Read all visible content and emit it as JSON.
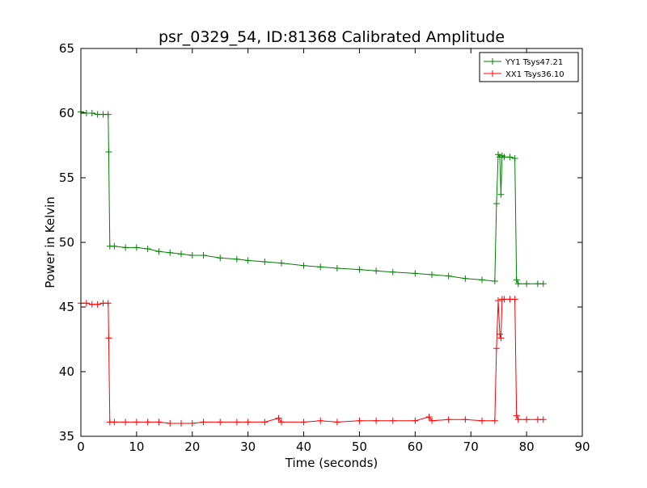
{
  "chart_data": {
    "type": "line",
    "title": "psr_0329_54, ID:81368 Calibrated Amplitude",
    "xlabel": "Time (seconds)",
    "ylabel": "Power in Kelvin",
    "xlim": [
      0,
      90
    ],
    "ylim": [
      35,
      65
    ],
    "xticks": [
      0,
      10,
      20,
      30,
      40,
      50,
      60,
      70,
      80,
      90
    ],
    "yticks": [
      35,
      40,
      45,
      50,
      55,
      60,
      65
    ],
    "grid": false,
    "legend_position": "top-right",
    "series": [
      {
        "name": "YY1 Tsys47.21",
        "color": "#008000",
        "marker": "+",
        "points": [
          [
            0,
            60.1
          ],
          [
            1,
            60.0
          ],
          [
            2,
            60.0
          ],
          [
            3,
            59.9
          ],
          [
            4,
            59.9
          ],
          [
            4.9,
            59.9
          ],
          [
            5.0,
            57.0
          ],
          [
            5.2,
            49.7
          ],
          [
            6,
            49.7
          ],
          [
            8,
            49.6
          ],
          [
            10,
            49.6
          ],
          [
            12,
            49.5
          ],
          [
            14,
            49.3
          ],
          [
            16,
            49.2
          ],
          [
            18,
            49.1
          ],
          [
            20,
            49.0
          ],
          [
            22,
            49.0
          ],
          [
            25,
            48.8
          ],
          [
            28,
            48.7
          ],
          [
            30,
            48.6
          ],
          [
            33,
            48.5
          ],
          [
            36,
            48.4
          ],
          [
            40,
            48.2
          ],
          [
            43,
            48.1
          ],
          [
            46,
            48.0
          ],
          [
            50,
            47.9
          ],
          [
            53,
            47.8
          ],
          [
            56,
            47.7
          ],
          [
            60,
            47.6
          ],
          [
            63,
            47.5
          ],
          [
            66,
            47.4
          ],
          [
            69,
            47.2
          ],
          [
            72,
            47.1
          ],
          [
            74.3,
            47.0
          ],
          [
            74.6,
            53.0
          ],
          [
            74.9,
            56.8
          ],
          [
            75.2,
            56.6
          ],
          [
            75.4,
            53.7
          ],
          [
            75.6,
            56.7
          ],
          [
            76,
            56.6
          ],
          [
            77,
            56.6
          ],
          [
            77.9,
            56.5
          ],
          [
            78.2,
            47.1
          ],
          [
            78.5,
            46.8
          ],
          [
            80,
            46.8
          ],
          [
            82,
            46.8
          ],
          [
            83,
            46.8
          ]
        ]
      },
      {
        "name": "XX1 Tsys36.10",
        "color": "#ff0000",
        "marker": "+",
        "points": [
          [
            0,
            45.3
          ],
          [
            1,
            45.3
          ],
          [
            2,
            45.2
          ],
          [
            3,
            45.2
          ],
          [
            4,
            45.3
          ],
          [
            4.9,
            45.3
          ],
          [
            5.0,
            42.6
          ],
          [
            5.2,
            36.1
          ],
          [
            6,
            36.1
          ],
          [
            8,
            36.1
          ],
          [
            10,
            36.1
          ],
          [
            12,
            36.1
          ],
          [
            14,
            36.1
          ],
          [
            16,
            36.0
          ],
          [
            18,
            36.0
          ],
          [
            20,
            36.0
          ],
          [
            22,
            36.1
          ],
          [
            25,
            36.1
          ],
          [
            28,
            36.1
          ],
          [
            30,
            36.1
          ],
          [
            33,
            36.1
          ],
          [
            35.5,
            36.4
          ],
          [
            36,
            36.1
          ],
          [
            40,
            36.1
          ],
          [
            43,
            36.2
          ],
          [
            46,
            36.1
          ],
          [
            50,
            36.2
          ],
          [
            53,
            36.2
          ],
          [
            56,
            36.2
          ],
          [
            60,
            36.2
          ],
          [
            62.5,
            36.5
          ],
          [
            63,
            36.2
          ],
          [
            66,
            36.3
          ],
          [
            69,
            36.3
          ],
          [
            72,
            36.2
          ],
          [
            74.3,
            36.2
          ],
          [
            74.6,
            41.8
          ],
          [
            74.9,
            45.5
          ],
          [
            75.2,
            42.9
          ],
          [
            75.4,
            42.6
          ],
          [
            75.6,
            45.6
          ],
          [
            76,
            45.6
          ],
          [
            77,
            45.6
          ],
          [
            77.9,
            45.6
          ],
          [
            78.2,
            36.6
          ],
          [
            78.5,
            36.3
          ],
          [
            80,
            36.3
          ],
          [
            82,
            36.3
          ],
          [
            83,
            36.3
          ]
        ]
      }
    ]
  }
}
